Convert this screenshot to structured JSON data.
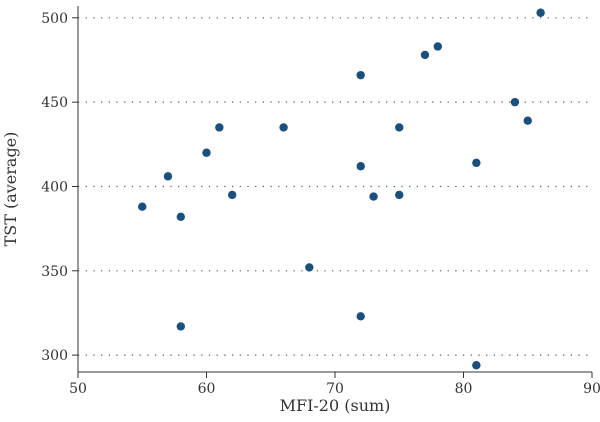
{
  "chart_data": {
    "type": "scatter",
    "title": "",
    "xlabel": "MFI-20 (sum)",
    "ylabel": "TST (average)",
    "xlim": [
      50,
      90
    ],
    "ylim": [
      290,
      507
    ],
    "xticks": [
      50,
      60,
      70,
      80,
      90
    ],
    "yticks": [
      300,
      350,
      400,
      450,
      500
    ],
    "grid": "horizontal-dotted",
    "legend": "none",
    "marker_color": "#1b4f7d",
    "series": [
      {
        "points": [
          {
            "x": 55,
            "y": 388
          },
          {
            "x": 57,
            "y": 406
          },
          {
            "x": 58,
            "y": 382
          },
          {
            "x": 58,
            "y": 317
          },
          {
            "x": 60,
            "y": 420
          },
          {
            "x": 61,
            "y": 435
          },
          {
            "x": 62,
            "y": 395
          },
          {
            "x": 66,
            "y": 435
          },
          {
            "x": 68,
            "y": 352
          },
          {
            "x": 72,
            "y": 466
          },
          {
            "x": 72,
            "y": 412
          },
          {
            "x": 72,
            "y": 323
          },
          {
            "x": 73,
            "y": 394
          },
          {
            "x": 75,
            "y": 435
          },
          {
            "x": 75,
            "y": 395
          },
          {
            "x": 77,
            "y": 478
          },
          {
            "x": 78,
            "y": 483
          },
          {
            "x": 81,
            "y": 414
          },
          {
            "x": 81,
            "y": 294
          },
          {
            "x": 84,
            "y": 450
          },
          {
            "x": 85,
            "y": 439
          },
          {
            "x": 86,
            "y": 503
          }
        ]
      }
    ]
  }
}
